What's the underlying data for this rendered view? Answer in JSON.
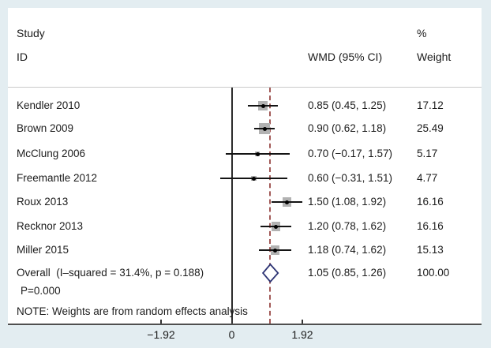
{
  "header": {
    "study_line1": "Study",
    "study_line2": "ID",
    "wmd": "WMD (95% CI)",
    "percent": "%",
    "weight": "Weight"
  },
  "note": "NOTE: Weights are from random effects analysis",
  "colors": {
    "frame_background": "#e3edf1",
    "panel_background": "#ffffff",
    "text": "#1c1c1c",
    "null_line": "#2b2b2b",
    "overall_dashed_line": "#a25a58",
    "ci_line": "#141414",
    "weight_square": "#b2b2b2",
    "point_dot": "#000000",
    "diamond_stroke": "#2d3474",
    "axis_line": "#4f4f4f",
    "header_separator": "#c9c9c9"
  },
  "chart_data": {
    "type": "forest",
    "effect_measure": "WMD (95% CI)",
    "studies": [
      {
        "id": "Kendler 2010",
        "value": 0.85,
        "lo": 0.45,
        "hi": 1.25,
        "wmd_label": "0.85 (0.45, 1.25)",
        "weight": 17.12,
        "weight_label": "17.12"
      },
      {
        "id": "Brown 2009",
        "value": 0.9,
        "lo": 0.62,
        "hi": 1.18,
        "wmd_label": "0.90 (0.62, 1.18)",
        "weight": 25.49,
        "weight_label": "25.49"
      },
      {
        "id": "McClung 2006",
        "value": 0.7,
        "lo": -0.17,
        "hi": 1.57,
        "wmd_label": "0.70 (−0.17, 1.57)",
        "weight": 5.17,
        "weight_label": "5.17"
      },
      {
        "id": "Freemantle 2012",
        "value": 0.6,
        "lo": -0.31,
        "hi": 1.51,
        "wmd_label": "0.60 (−0.31, 1.51)",
        "weight": 4.77,
        "weight_label": "4.77"
      },
      {
        "id": "Roux 2013",
        "value": 1.5,
        "lo": 1.08,
        "hi": 1.92,
        "wmd_label": "1.50 (1.08, 1.92)",
        "weight": 16.16,
        "weight_label": "16.16"
      },
      {
        "id": "Recknor 2013",
        "value": 1.2,
        "lo": 0.78,
        "hi": 1.62,
        "wmd_label": "1.20 (0.78, 1.62)",
        "weight": 16.16,
        "weight_label": "16.16"
      },
      {
        "id": "Miller 2015",
        "value": 1.18,
        "lo": 0.74,
        "hi": 1.62,
        "wmd_label": "1.18 (0.74, 1.62)",
        "weight": 15.13,
        "weight_label": "15.13"
      }
    ],
    "overall": {
      "label": "Overall  (I–squared = 31.4%, p = 0.188)",
      "p_line": "P=0.000",
      "value": 1.05,
      "lo": 0.85,
      "hi": 1.26,
      "wmd_label": "1.05 (0.85, 1.26)",
      "weight_label": "100.00"
    },
    "x_ticks": [
      {
        "value": -1.92,
        "label": "−1.92"
      },
      {
        "value": 0,
        "label": "0"
      },
      {
        "value": 1.92,
        "label": "1.92"
      }
    ],
    "null_line_x": 0,
    "overall_dashed_x": 1.05,
    "legend_position": "none",
    "grid": false
  }
}
